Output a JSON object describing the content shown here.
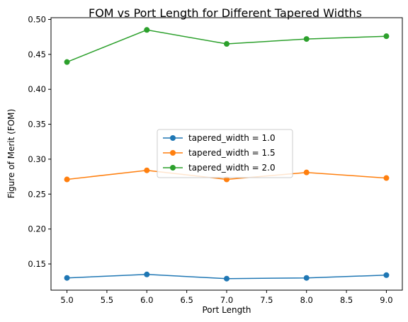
{
  "chart_data": {
    "type": "line",
    "title": "FOM vs Port Length for Different Tapered Widths",
    "xlabel": "Port Length",
    "ylabel": "Figure of Merit (FOM)",
    "xlim": [
      4.8,
      9.2
    ],
    "ylim": [
      0.1125,
      0.5025
    ],
    "x_ticks": [
      "5.0",
      "5.5",
      "6.0",
      "6.5",
      "7.0",
      "7.5",
      "8.0",
      "8.5",
      "9.0"
    ],
    "y_ticks": [
      "0.15",
      "0.20",
      "0.25",
      "0.30",
      "0.35",
      "0.40",
      "0.45",
      "0.50"
    ],
    "grid": false,
    "legend_placement": "center",
    "x": [
      5.0,
      6.0,
      7.0,
      8.0,
      9.0
    ],
    "series": [
      {
        "name": "tapered_width = 1.0",
        "color": "#1f77b4",
        "values": [
          0.13,
          0.135,
          0.129,
          0.13,
          0.134
        ]
      },
      {
        "name": "tapered_width = 1.5",
        "color": "#ff7f0e",
        "values": [
          0.271,
          0.284,
          0.271,
          0.281,
          0.273
        ]
      },
      {
        "name": "tapered_width = 2.0",
        "color": "#2ca02c",
        "values": [
          0.439,
          0.485,
          0.465,
          0.472,
          0.476
        ]
      }
    ]
  }
}
